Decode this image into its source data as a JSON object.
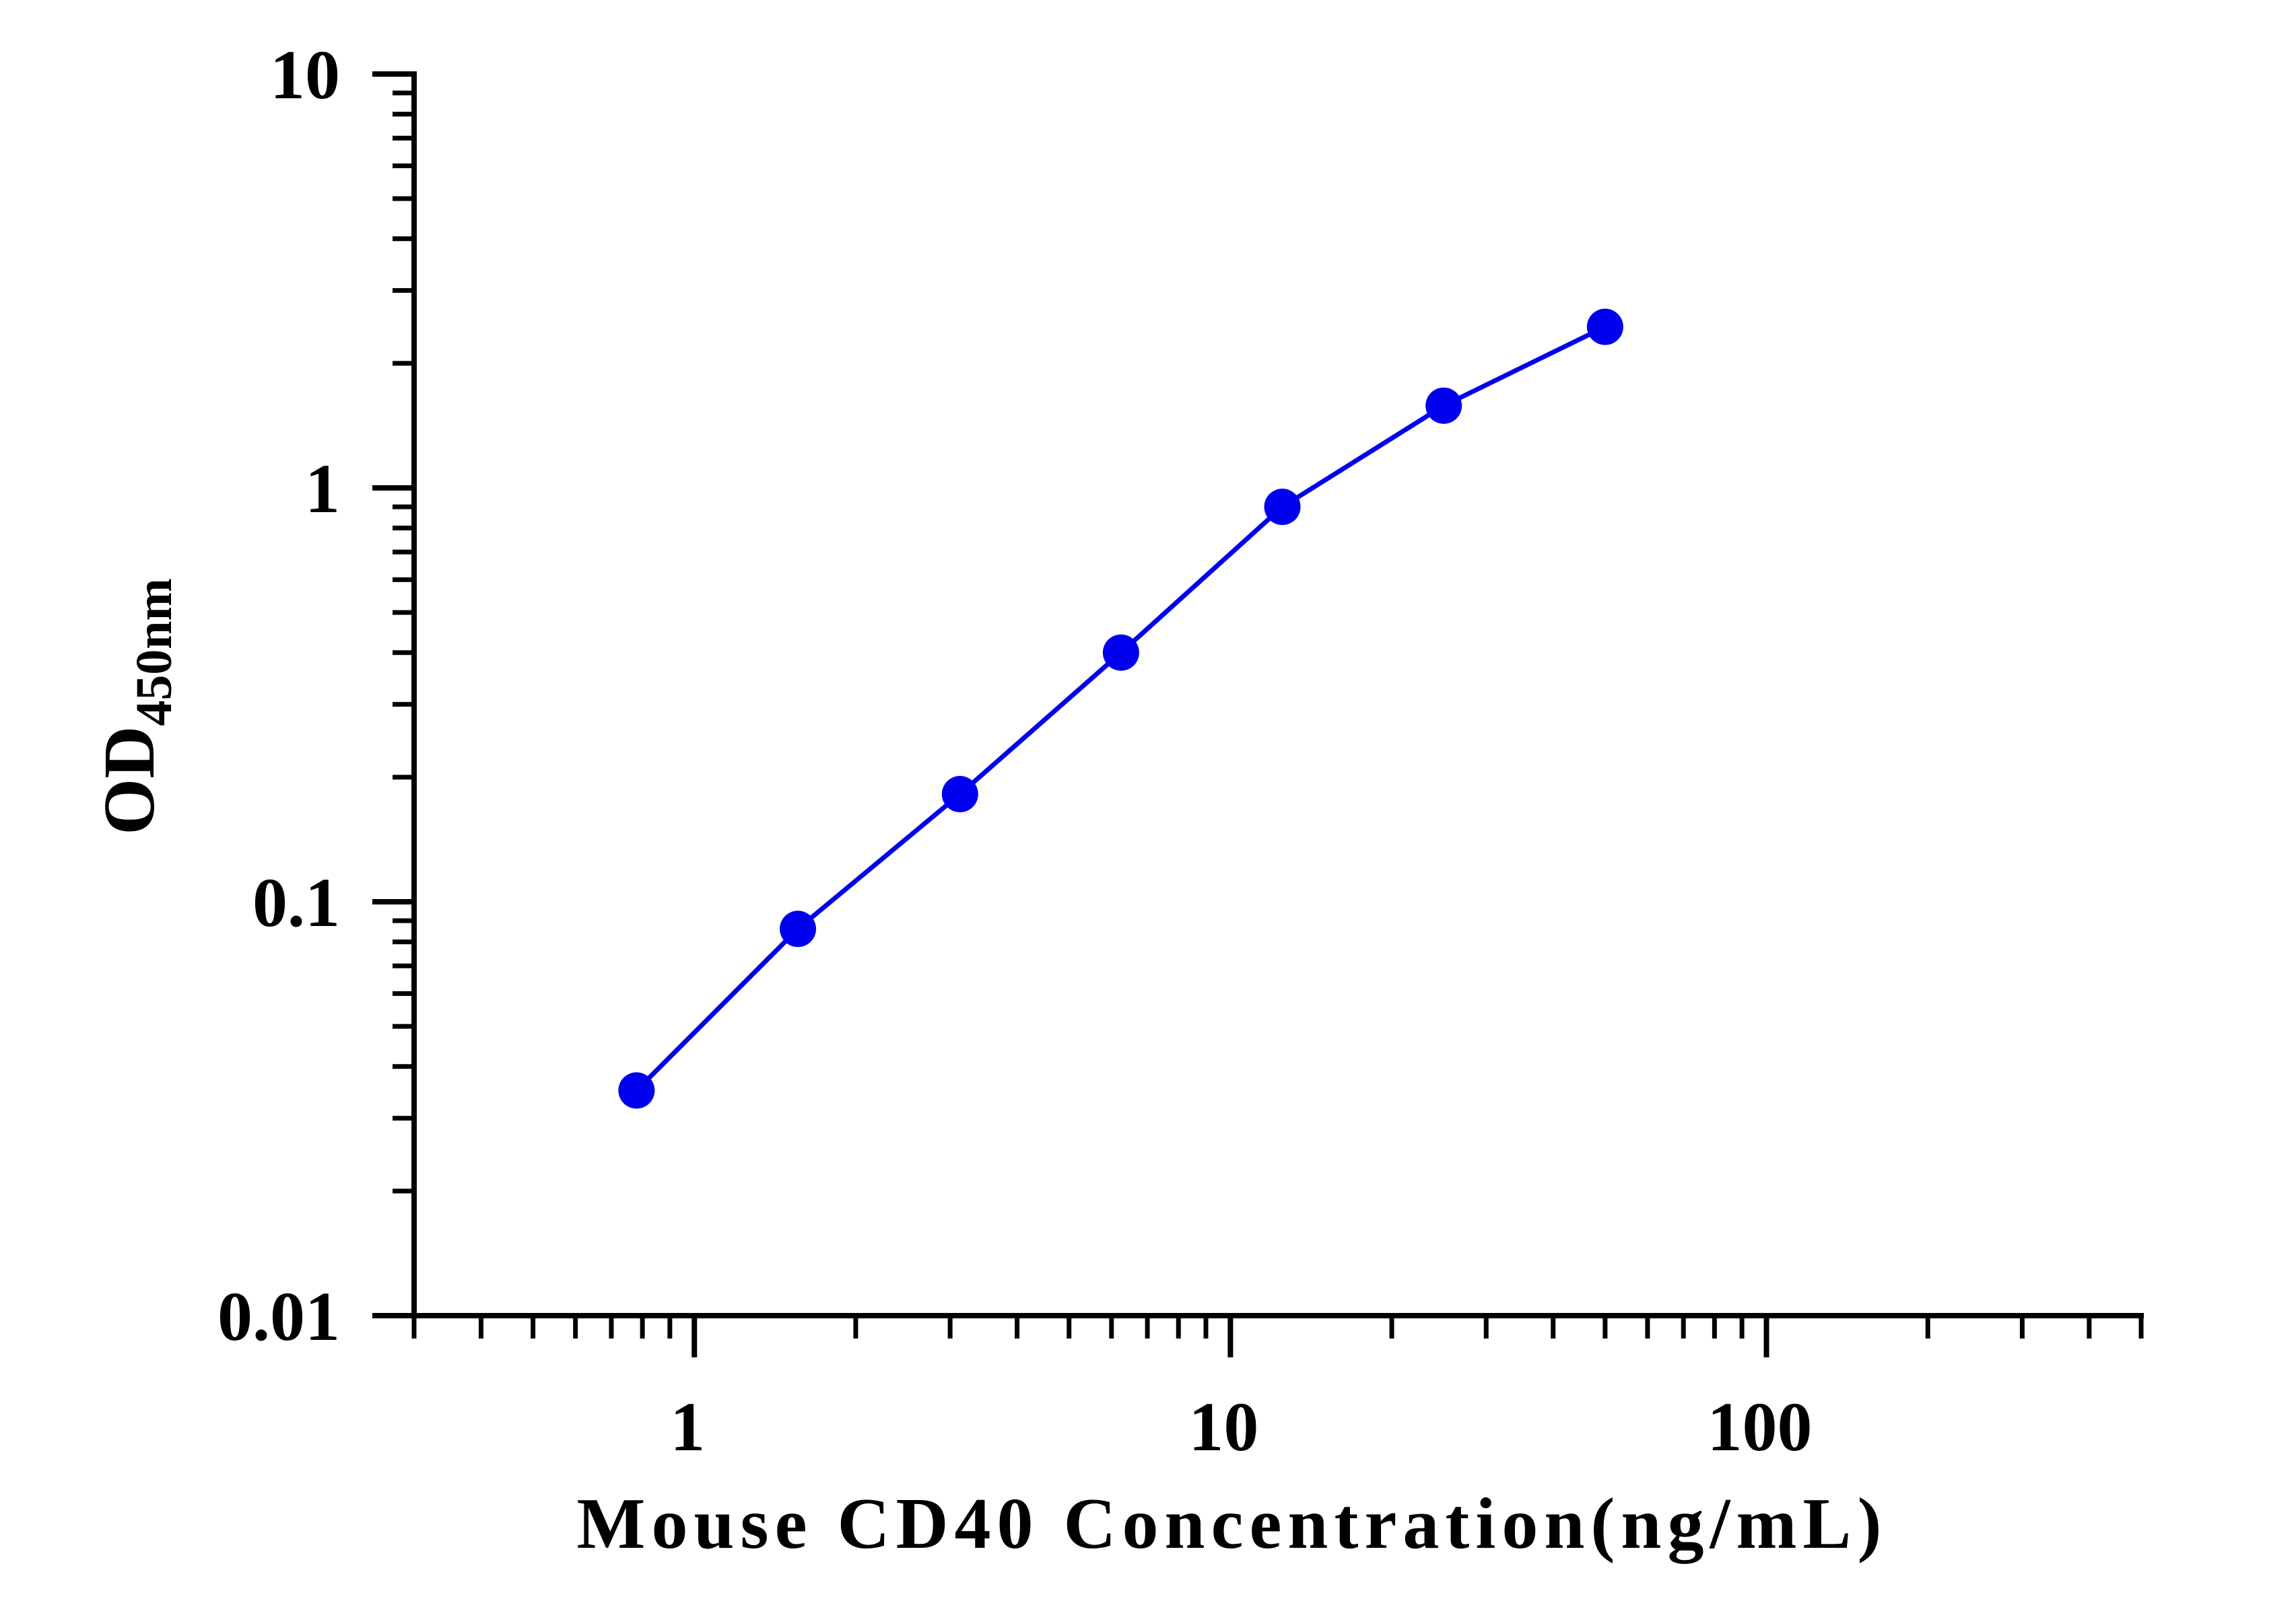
{
  "chart_data": {
    "type": "line",
    "title": "",
    "xlabel": "Mouse CD40 Concentration(ng/mL)",
    "ylabel": {
      "main": "OD",
      "subscript": "450nm"
    },
    "x_scale": "log",
    "y_scale": "log",
    "xlim": [
      0.3,
      500
    ],
    "ylim": [
      0.01,
      10
    ],
    "x_ticks": [
      {
        "value": 1,
        "label": "1"
      },
      {
        "value": 10,
        "label": "10"
      },
      {
        "value": 100,
        "label": "100"
      }
    ],
    "y_ticks": [
      {
        "value": 0.01,
        "label": "0.01"
      },
      {
        "value": 0.1,
        "label": "0.1"
      },
      {
        "value": 1,
        "label": "1"
      },
      {
        "value": 10,
        "label": "10"
      }
    ],
    "grid": false,
    "legend": "none",
    "series": [
      {
        "color": "#0000ee",
        "x": [
          0.78,
          1.56,
          3.13,
          6.25,
          12.5,
          25,
          50
        ],
        "y": [
          0.035,
          0.086,
          0.182,
          0.4,
          0.9,
          1.58,
          2.45
        ]
      }
    ]
  }
}
